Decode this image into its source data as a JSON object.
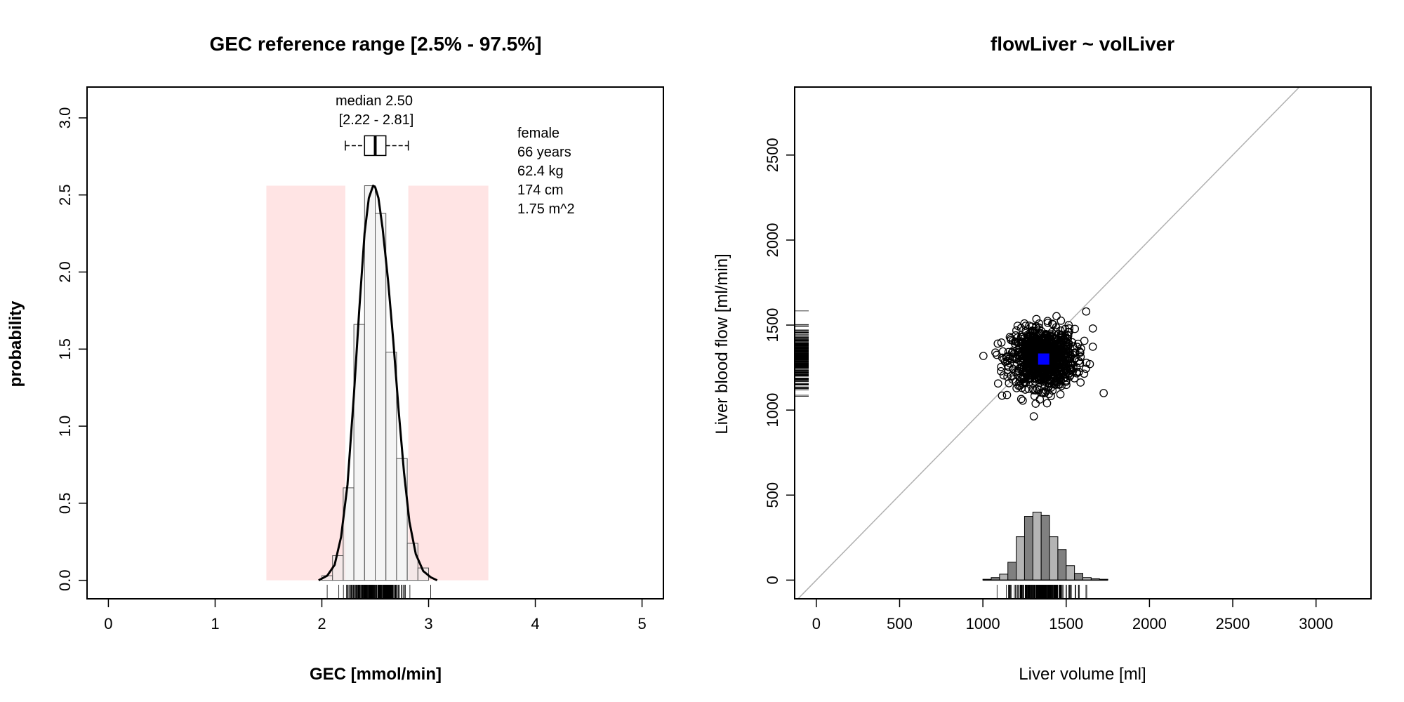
{
  "chart_data": [
    {
      "type": "histogram",
      "title": "GEC reference range [2.5% - 97.5%]",
      "xlabel": "GEC [mmol/min]",
      "ylabel": "probability",
      "xlim": [
        -0.2,
        5.2
      ],
      "ylim": [
        -0.12,
        3.2
      ],
      "x_ticks": [
        0,
        1,
        2,
        3,
        4,
        5
      ],
      "y_ticks": [
        0.0,
        0.5,
        1.0,
        1.5,
        2.0,
        2.5,
        3.0
      ],
      "x_tick_labels": [
        "0",
        "1",
        "2",
        "3",
        "4",
        "5"
      ],
      "y_tick_labels": [
        "0.0",
        "0.5",
        "1.0",
        "1.5",
        "2.0",
        "2.5",
        "3.0"
      ],
      "grid": false,
      "histogram": {
        "bin_width": 0.1,
        "bins": [
          {
            "x0": 2.0,
            "x1": 2.1,
            "value": 0.03
          },
          {
            "x0": 2.1,
            "x1": 2.2,
            "value": 0.16
          },
          {
            "x0": 2.2,
            "x1": 2.3,
            "value": 0.6
          },
          {
            "x0": 2.3,
            "x1": 2.4,
            "value": 1.66
          },
          {
            "x0": 2.4,
            "x1": 2.5,
            "value": 2.56
          },
          {
            "x0": 2.5,
            "x1": 2.6,
            "value": 2.38
          },
          {
            "x0": 2.6,
            "x1": 2.7,
            "value": 1.48
          },
          {
            "x0": 2.7,
            "x1": 2.8,
            "value": 0.79
          },
          {
            "x0": 2.8,
            "x1": 2.9,
            "value": 0.24
          },
          {
            "x0": 2.9,
            "x1": 3.0,
            "value": 0.08
          }
        ]
      },
      "density": {
        "x": [
          1.97,
          2.05,
          2.12,
          2.18,
          2.24,
          2.3,
          2.35,
          2.4,
          2.44,
          2.48,
          2.5,
          2.53,
          2.57,
          2.62,
          2.67,
          2.72,
          2.77,
          2.82,
          2.88,
          2.95,
          3.02,
          3.08
        ],
        "y": [
          0.0,
          0.03,
          0.1,
          0.28,
          0.62,
          1.2,
          1.75,
          2.25,
          2.48,
          2.56,
          2.55,
          2.48,
          2.28,
          1.95,
          1.55,
          1.1,
          0.7,
          0.38,
          0.17,
          0.06,
          0.02,
          0.0
        ]
      },
      "reference_bands": [
        {
          "x0": 1.48,
          "x1": 2.22,
          "y0": 0.0,
          "y1": 2.56,
          "color": "#ffe4e4"
        },
        {
          "x0": 2.81,
          "x1": 3.56,
          "y0": 0.0,
          "y1": 2.56,
          "color": "#ffe4e4"
        }
      ],
      "boxplot": {
        "y": 2.82,
        "whisker_low": 2.22,
        "q1": 2.4,
        "median": 2.5,
        "q3": 2.6,
        "whisker_high": 2.81
      },
      "median_text": "median 2.50",
      "range_text": "[2.22 - 2.81]",
      "patient_info": [
        "female",
        "66 years",
        "62.4 kg",
        "174 cm",
        "1.75 m^2"
      ],
      "rug": {
        "min": 2.05,
        "max": 3.02,
        "center": 2.5,
        "spread": 0.13
      }
    },
    {
      "type": "scatter",
      "title": "flowLiver ~ volLiver",
      "xlabel": "Liver volume [ml]",
      "ylabel": "Liver blood flow [ml/min]",
      "xlim": [
        -130,
        3330
      ],
      "ylim": [
        -110,
        2900
      ],
      "x_ticks": [
        0,
        500,
        1000,
        1500,
        2000,
        2500,
        3000
      ],
      "y_ticks": [
        0,
        500,
        1000,
        1500,
        2000,
        2500
      ],
      "x_tick_labels": [
        "0",
        "500",
        "1000",
        "1500",
        "2000",
        "2500",
        "3000"
      ],
      "y_tick_labels": [
        "0",
        "500",
        "1000",
        "1500",
        "2000",
        "2500"
      ],
      "grid": false,
      "identity_line": {
        "color": "#b0b0b0"
      },
      "scatter": {
        "n": 1000,
        "center_x": 1360,
        "center_y": 1305,
        "sd_x": 95,
        "sd_y": 85
      },
      "outliers": [
        {
          "x": 1725,
          "y": 1100
        },
        {
          "x": 1115,
          "y": 1085
        },
        {
          "x": 1620,
          "y": 1580
        },
        {
          "x": 1660,
          "y": 1480
        },
        {
          "x": 1385,
          "y": 1040
        },
        {
          "x": 1120,
          "y": 1345
        }
      ],
      "highlight_point": {
        "x": 1365,
        "y": 1300,
        "color": "#0000ff"
      },
      "x_histogram": {
        "bins": [
          {
            "x0": 1000,
            "x1": 1050,
            "value": 5
          },
          {
            "x0": 1050,
            "x1": 1100,
            "value": 15
          },
          {
            "x0": 1100,
            "x1": 1150,
            "value": 35
          },
          {
            "x0": 1150,
            "x1": 1200,
            "value": 105
          },
          {
            "x0": 1200,
            "x1": 1250,
            "value": 255
          },
          {
            "x0": 1250,
            "x1": 1300,
            "value": 375
          },
          {
            "x0": 1300,
            "x1": 1350,
            "value": 400
          },
          {
            "x0": 1350,
            "x1": 1400,
            "value": 380
          },
          {
            "x0": 1400,
            "x1": 1450,
            "value": 255
          },
          {
            "x0": 1450,
            "x1": 1500,
            "value": 180
          },
          {
            "x0": 1500,
            "x1": 1550,
            "value": 85
          },
          {
            "x0": 1550,
            "x1": 1600,
            "value": 40
          },
          {
            "x0": 1600,
            "x1": 1650,
            "value": 15
          },
          {
            "x0": 1650,
            "x1": 1700,
            "value": 8
          },
          {
            "x0": 1700,
            "x1": 1750,
            "value": 5
          }
        ],
        "colors": [
          "#b4b4b4",
          "#808080"
        ]
      },
      "x_rug": {
        "min": 1050,
        "max": 1725
      },
      "y_rug": {
        "min": 1040,
        "max": 1585
      }
    }
  ]
}
